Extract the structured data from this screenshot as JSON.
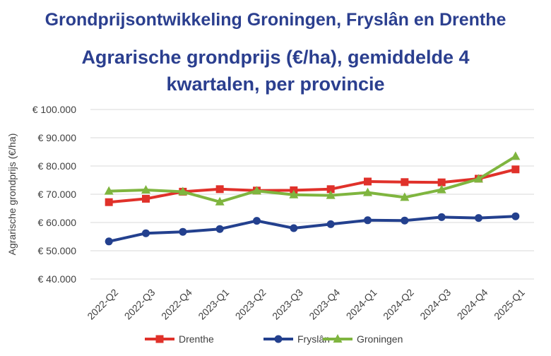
{
  "header": {
    "title": "Grondprijsontwikkeling Groningen, Fryslân en Drenthe",
    "subtitle_line1": "Agrarische grondprijs (€/ha), gemiddelde 4",
    "subtitle_line2": "kwartalen, per provincie"
  },
  "chart_data": {
    "type": "line",
    "title": "Agrarische grondprijs (€/ha), gemiddelde 4 kwartalen, per provincie",
    "xlabel": "",
    "ylabel": "Agrarische grondprijs (€/ha)",
    "categories": [
      "2022-Q2",
      "2022-Q3",
      "2022-Q4",
      "2023-Q1",
      "2023-Q2",
      "2023-Q3",
      "2023-Q4",
      "2024-Q1",
      "2024-Q2",
      "2024-Q3",
      "2024-Q4",
      "2025-Q1"
    ],
    "ylim": [
      40000,
      100000
    ],
    "y_ticks": [
      40000,
      50000,
      60000,
      70000,
      80000,
      90000,
      100000
    ],
    "y_tick_labels": [
      "€ 40.000",
      "€ 50.000",
      "€ 60.000",
      "€ 70.000",
      "€ 80.000",
      "€ 90.000",
      "€ 100.000"
    ],
    "grid": true,
    "legend_position": "bottom",
    "series": [
      {
        "name": "Drenthe",
        "color": "#e0312a",
        "marker": "square",
        "values": [
          67200,
          68400,
          70900,
          71800,
          71300,
          71400,
          71800,
          74500,
          74300,
          74200,
          75500,
          78800
        ]
      },
      {
        "name": "Fryslân",
        "color": "#23408e",
        "marker": "circle",
        "values": [
          53300,
          56200,
          56700,
          57700,
          60600,
          58000,
          59400,
          60800,
          60700,
          61900,
          61600,
          62200
        ]
      },
      {
        "name": "Groningen",
        "color": "#7fb53f",
        "marker": "triangle",
        "values": [
          71100,
          71500,
          70900,
          67300,
          71200,
          69800,
          69600,
          70600,
          68900,
          71600,
          75400,
          83400
        ]
      }
    ]
  }
}
